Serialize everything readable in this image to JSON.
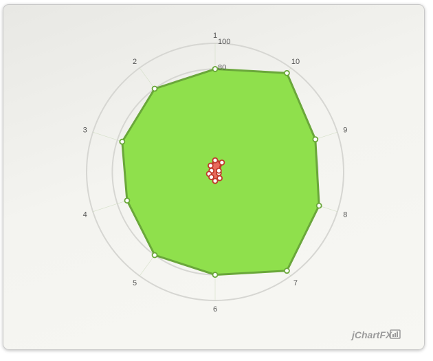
{
  "chart_data": {
    "type": "radar",
    "categories": [
      "1",
      "2",
      "3",
      "4",
      "5",
      "6",
      "7",
      "8",
      "9",
      "10"
    ],
    "radial_ticks": [
      "80",
      "100"
    ],
    "rlim": [
      0,
      100
    ],
    "series": [
      {
        "values": [
          80,
          80,
          76,
          72,
          80,
          80,
          95,
          85,
          82,
          95
        ],
        "color": "#8fe04c",
        "stroke": "#6aa73a"
      },
      {
        "values": [
          9,
          6,
          3,
          5,
          5,
          7,
          6,
          3,
          3,
          9
        ],
        "color": "#e86a5c",
        "stroke": "#c0392b"
      }
    ],
    "grid": true
  },
  "brand": {
    "logo_text": "jChartFX"
  }
}
